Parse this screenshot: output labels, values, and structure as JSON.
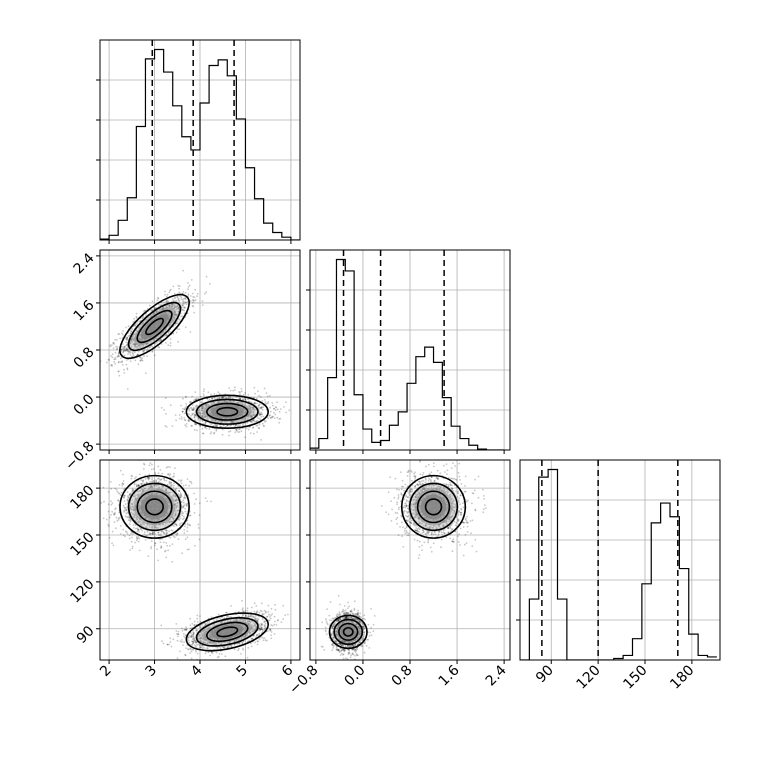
{
  "chart_data": {
    "type": "corner",
    "grid": true,
    "parameters": [
      {
        "range": [
          1.8,
          6.2
        ],
        "ticks": [
          2,
          3,
          4,
          5,
          6
        ],
        "tick_labels": [
          "2",
          "3",
          "4",
          "5",
          "6"
        ]
      },
      {
        "range": [
          -0.9,
          2.5
        ],
        "ticks": [
          -0.8,
          0.0,
          0.8,
          1.6,
          2.4
        ],
        "tick_labels": [
          "−0.8",
          "0.0",
          "0.8",
          "1.6",
          "2.4"
        ]
      },
      {
        "range": [
          70,
          198
        ],
        "ticks": [
          90,
          120,
          150,
          180
        ],
        "tick_labels": [
          "90",
          "120",
          "150",
          "180"
        ]
      }
    ],
    "histograms": [
      {
        "bin_edges": [
          1.8,
          2.0,
          2.2,
          2.4,
          2.6,
          2.8,
          3.0,
          3.2,
          3.4,
          3.6,
          3.8,
          4.0,
          4.2,
          4.4,
          4.6,
          4.8,
          5.0,
          5.2,
          5.4,
          5.6,
          5.8,
          6.0,
          6.2
        ],
        "counts": [
          1,
          5,
          21,
          45,
          121,
          193,
          203,
          179,
          143,
          110,
          96,
          146,
          186,
          192,
          175,
          129,
          77,
          44,
          18,
          8,
          3,
          0
        ],
        "quantiles": [
          2.95,
          3.85,
          4.75
        ]
      },
      {
        "bin_edges": [
          -0.9,
          -0.75,
          -0.6,
          -0.45,
          -0.3,
          -0.15,
          0.0,
          0.15,
          0.3,
          0.45,
          0.6,
          0.75,
          0.9,
          1.05,
          1.2,
          1.35,
          1.5,
          1.65,
          1.8,
          1.95,
          2.1,
          2.25,
          2.4
        ],
        "counts": [
          2,
          12,
          76,
          200,
          188,
          58,
          22,
          8,
          10,
          26,
          40,
          70,
          98,
          108,
          92,
          55,
          25,
          12,
          5,
          1,
          0,
          0
        ],
        "quantiles": [
          -0.33,
          0.3,
          1.38
        ]
      },
      {
        "bin_edges": [
          70,
          76,
          82,
          88,
          94,
          100,
          106,
          112,
          118,
          124,
          130,
          136,
          142,
          148,
          154,
          160,
          166,
          172,
          178,
          184,
          190,
          196
        ],
        "counts": [
          0,
          40,
          120,
          125,
          40,
          0,
          0,
          0,
          0,
          0,
          1,
          3,
          14,
          50,
          90,
          103,
          94,
          60,
          17,
          3,
          2
        ],
        "quantiles": [
          84,
          120,
          171
        ]
      }
    ],
    "mixture_components": [
      {
        "mean": [
          3.0,
          1.2,
          168
        ],
        "sd": [
          0.38,
          0.27,
          10
        ]
      },
      {
        "mean": [
          4.6,
          -0.25,
          88
        ],
        "sd": [
          0.45,
          0.14,
          6
        ]
      }
    ],
    "correlations": {
      "0-1": [
        0.75,
        0.0
      ],
      "0-2": [
        0.0,
        0.4
      ],
      "1-2": [
        0.0,
        0.0
      ]
    }
  }
}
